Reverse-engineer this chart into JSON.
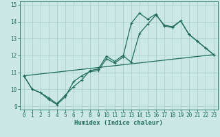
{
  "xlabel": "Humidex (Indice chaleur)",
  "bg_color": "#cce8e5",
  "grid_color": "#aacfcb",
  "line_color": "#1e6b5e",
  "xlim": [
    -0.5,
    23.5
  ],
  "ylim": [
    8.8,
    15.2
  ],
  "xticks": [
    0,
    1,
    2,
    3,
    4,
    5,
    6,
    7,
    8,
    9,
    10,
    11,
    12,
    13,
    14,
    15,
    16,
    17,
    18,
    19,
    20,
    21,
    22,
    23
  ],
  "yticks": [
    9,
    10,
    11,
    12,
    13,
    14,
    15
  ],
  "series1_x": [
    0,
    1,
    2,
    3,
    4,
    5,
    6,
    7,
    8,
    9,
    10,
    11,
    12,
    13,
    14,
    15,
    16,
    17,
    18,
    19,
    20,
    21,
    22,
    23
  ],
  "series1_y": [
    10.8,
    10.0,
    9.8,
    9.4,
    9.1,
    9.55,
    10.45,
    10.8,
    11.05,
    11.1,
    11.8,
    11.55,
    11.9,
    13.9,
    14.5,
    14.15,
    14.45,
    13.75,
    13.65,
    14.05,
    13.25,
    12.85,
    12.45,
    12.05
  ],
  "series2_x": [
    0,
    1,
    2,
    3,
    4,
    5,
    6,
    7,
    8,
    9,
    10,
    11,
    12,
    13,
    14,
    15,
    16,
    17,
    18,
    19,
    20,
    21,
    22,
    23
  ],
  "series2_y": [
    10.8,
    10.0,
    9.8,
    9.5,
    9.15,
    9.65,
    10.15,
    10.55,
    11.1,
    11.2,
    11.95,
    11.65,
    12.0,
    11.6,
    13.3,
    13.85,
    14.4,
    13.8,
    13.7,
    14.05,
    13.25,
    12.85,
    12.45,
    12.05
  ],
  "series3_x": [
    0,
    23
  ],
  "series3_y": [
    10.8,
    12.05
  ]
}
